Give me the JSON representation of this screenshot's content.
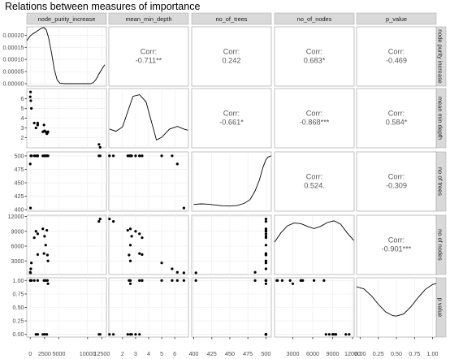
{
  "title": "Relations between measures of importance",
  "chart_data": {
    "type": "scatter",
    "kind": "pairs plot (scatter matrix)",
    "variables": [
      "node_purity_increase",
      "mean_min_depth",
      "no_of_trees",
      "no_of_nodes",
      "p_value"
    ],
    "axes": {
      "node_purity_increase": {
        "ticks": [
          0,
          2500,
          5000,
          10000,
          12500
        ],
        "tick_labels": [
          "0",
          "2500",
          "5000",
          "10000",
          "12500"
        ],
        "range": [
          -600,
          13300
        ]
      },
      "mean_min_depth": {
        "ticks": [
          2,
          3,
          4,
          5,
          6
        ],
        "tick_labels": [
          "2",
          "3",
          "4",
          "5",
          "6"
        ],
        "range": [
          0.95,
          7.05
        ]
      },
      "no_of_trees": {
        "ticks": [
          400,
          425,
          450,
          475,
          500
        ],
        "tick_labels": [
          "400",
          "425",
          "450",
          "475",
          "500"
        ],
        "range": [
          397.2,
          507.4
        ]
      },
      "no_of_nodes": {
        "ticks": [
          3000,
          6000,
          9000,
          12000
        ],
        "tick_labels": [
          "3000",
          "6000",
          "9000",
          "12000"
        ],
        "range": [
          250,
          12250
        ]
      },
      "p_value": {
        "ticks": [
          0,
          0.25,
          0.5,
          0.75,
          1
        ],
        "tick_labels": [
          "0.00",
          "0.25",
          "0.50",
          "0.75",
          "1.00"
        ],
        "range": [
          -0.05,
          1.05
        ]
      }
    },
    "density_axis": {
      "ticks": [
        0,
        5e-05,
        0.0001,
        0.00015,
        0.0002
      ],
      "tick_labels": [
        "0.00000",
        "0.00005",
        "0.00010",
        "0.00015",
        "0.00020"
      ],
      "range": [
        -1e-05,
        0.000235
      ]
    },
    "densities": [
      {
        "variable": "node_purity_increase",
        "y_label_space": true,
        "points": [
          [
            -600,
            0.000178
          ],
          [
            0,
            0.000197
          ],
          [
            500,
            0.000207
          ],
          [
            1000,
            0.000214
          ],
          [
            1500,
            0.000222
          ],
          [
            2000,
            0.00023
          ],
          [
            2400,
            0.000232
          ],
          [
            2800,
            0.000222
          ],
          [
            3200,
            0.00019
          ],
          [
            3700,
            0.00013
          ],
          [
            4200,
            6e-05
          ],
          [
            4700,
            1.5e-05
          ],
          [
            5200,
            2e-06
          ],
          [
            6000,
            0
          ],
          [
            9000,
            0
          ],
          [
            10500,
            0
          ],
          [
            11000,
            4e-06
          ],
          [
            11500,
            1.8e-05
          ],
          [
            12000,
            4e-05
          ],
          [
            12500,
            6e-05
          ],
          [
            13000,
            7.8e-05
          ]
        ]
      },
      {
        "variable": "mean_min_depth",
        "points": [
          [
            1.0,
            0.3
          ],
          [
            1.5,
            0.26
          ],
          [
            2.0,
            0.34
          ],
          [
            2.4,
            0.62
          ],
          [
            2.8,
            0.9
          ],
          [
            3.3,
            0.93
          ],
          [
            3.8,
            0.8
          ],
          [
            4.2,
            0.45
          ],
          [
            4.6,
            0.1
          ],
          [
            5.0,
            0.15
          ],
          [
            5.6,
            0.3
          ],
          [
            6.2,
            0.35
          ],
          [
            6.7,
            0.3
          ],
          [
            7.0,
            0.28
          ]
        ]
      },
      {
        "variable": "no_of_trees",
        "points": [
          [
            400,
            0.08
          ],
          [
            410,
            0.09
          ],
          [
            420,
            0.085
          ],
          [
            430,
            0.07
          ],
          [
            440,
            0.055
          ],
          [
            450,
            0.05
          ],
          [
            460,
            0.06
          ],
          [
            470,
            0.1
          ],
          [
            478,
            0.17
          ],
          [
            485,
            0.33
          ],
          [
            491,
            0.53
          ],
          [
            496,
            0.77
          ],
          [
            500,
            0.9
          ],
          [
            503,
            0.95
          ],
          [
            507,
            0.97
          ]
        ]
      },
      {
        "variable": "no_of_nodes",
        "points": [
          [
            250,
            0.55
          ],
          [
            1200,
            0.72
          ],
          [
            2200,
            0.85
          ],
          [
            3200,
            0.9
          ],
          [
            4200,
            0.89
          ],
          [
            5200,
            0.84
          ],
          [
            6200,
            0.8
          ],
          [
            7200,
            0.84
          ],
          [
            8200,
            0.91
          ],
          [
            9200,
            0.94
          ],
          [
            10200,
            0.88
          ],
          [
            11200,
            0.72
          ],
          [
            12200,
            0.58
          ]
        ]
      },
      {
        "variable": "p_value",
        "points": [
          [
            -0.05,
            0.88
          ],
          [
            0.05,
            0.84
          ],
          [
            0.15,
            0.72
          ],
          [
            0.25,
            0.56
          ],
          [
            0.35,
            0.42
          ],
          [
            0.45,
            0.35
          ],
          [
            0.5,
            0.34
          ],
          [
            0.6,
            0.38
          ],
          [
            0.7,
            0.51
          ],
          [
            0.8,
            0.68
          ],
          [
            0.9,
            0.83
          ],
          [
            1.0,
            0.92
          ],
          [
            1.05,
            0.94
          ]
        ]
      }
    ],
    "observations": [
      {
        "node_purity_increase": 12200,
        "mean_min_depth": 1.0,
        "no_of_trees": 500,
        "no_of_nodes": 11500,
        "p_value": 0.0
      },
      {
        "node_purity_increase": 12000,
        "mean_min_depth": 1.3,
        "no_of_trees": 500,
        "no_of_nodes": 11000,
        "p_value": 0.0
      },
      {
        "node_purity_increase": 1000,
        "mean_min_depth": 3.0,
        "no_of_trees": 500,
        "no_of_nodes": 9000,
        "p_value": 0.0
      },
      {
        "node_purity_increase": 1300,
        "mean_min_depth": 3.3,
        "no_of_trees": 500,
        "no_of_nodes": 8500,
        "p_value": 0.0
      },
      {
        "node_purity_increase": 2200,
        "mean_min_depth": 2.6,
        "no_of_trees": 500,
        "no_of_nodes": 9500,
        "p_value": 0.0
      },
      {
        "node_purity_increase": 2900,
        "mean_min_depth": 2.4,
        "no_of_trees": 500,
        "no_of_nodes": 9200,
        "p_value": 0.0
      },
      {
        "node_purity_increase": 2500,
        "mean_min_depth": 2.7,
        "no_of_trees": 500,
        "no_of_nodes": 8000,
        "p_value": 0.0
      },
      {
        "node_purity_increase": 700,
        "mean_min_depth": 3.5,
        "no_of_trees": 500,
        "no_of_nodes": 7700,
        "p_value": 1.0
      },
      {
        "node_purity_increase": 2700,
        "mean_min_depth": 2.6,
        "no_of_trees": 500,
        "no_of_nodes": 6200,
        "p_value": 1.0
      },
      {
        "node_purity_increase": 3000,
        "mean_min_depth": 2.5,
        "no_of_trees": 500,
        "no_of_nodes": 4200,
        "p_value": 1.0
      },
      {
        "node_purity_increase": 2400,
        "mean_min_depth": 3.3,
        "no_of_trees": 500,
        "no_of_nodes": 4500,
        "p_value": 1.0
      },
      {
        "node_purity_increase": 1300,
        "mean_min_depth": 3.5,
        "no_of_trees": 500,
        "no_of_nodes": 4300,
        "p_value": 1.0
      },
      {
        "node_purity_increase": 3100,
        "mean_min_depth": 2.6,
        "no_of_trees": 500,
        "no_of_nodes": 3000,
        "p_value": 0.94
      },
      {
        "node_purity_increase": 200,
        "mean_min_depth": 5.0,
        "no_of_trees": 500,
        "no_of_nodes": 2600,
        "p_value": 1.0
      },
      {
        "node_purity_increase": 100,
        "mean_min_depth": 5.8,
        "no_of_trees": 500,
        "no_of_nodes": 1400,
        "p_value": 1.0
      },
      {
        "node_purity_increase": 0,
        "mean_min_depth": 6.2,
        "no_of_trees": 485,
        "no_of_nodes": 700,
        "p_value": 1.0
      },
      {
        "node_purity_increase": 50,
        "mean_min_depth": 6.7,
        "no_of_trees": 403,
        "no_of_nodes": 600,
        "p_value": 1.0
      }
    ],
    "correlations": [
      {
        "row": "node_purity_increase",
        "col": "mean_min_depth",
        "label": "Corr:",
        "value": "-0.711**"
      },
      {
        "row": "node_purity_increase",
        "col": "no_of_trees",
        "label": "Corr:",
        "value": "0.242"
      },
      {
        "row": "node_purity_increase",
        "col": "no_of_nodes",
        "label": "Corr:",
        "value": "0.683*"
      },
      {
        "row": "node_purity_increase",
        "col": "p_value",
        "label": "Corr:",
        "value": "-0.469"
      },
      {
        "row": "mean_min_depth",
        "col": "no_of_trees",
        "label": "Corr:",
        "value": "-0.661*"
      },
      {
        "row": "mean_min_depth",
        "col": "no_of_nodes",
        "label": "Corr:",
        "value": "-0.868***"
      },
      {
        "row": "mean_min_depth",
        "col": "p_value",
        "label": "Corr:",
        "value": "0.584*"
      },
      {
        "row": "no_of_trees",
        "col": "no_of_nodes",
        "label": "Corr:",
        "value": "0.524."
      },
      {
        "row": "no_of_trees",
        "col": "p_value",
        "label": "Corr:",
        "value": "-0.309"
      },
      {
        "row": "no_of_nodes",
        "col": "p_value",
        "label": "Corr:",
        "value": "-0.901***"
      }
    ],
    "grid": true,
    "colors": {
      "strip": "#d9d9d9",
      "panel_border": "#9a9a9a",
      "grid": "#ebebeb",
      "points": "#000000",
      "corr_text": "#595959"
    }
  }
}
